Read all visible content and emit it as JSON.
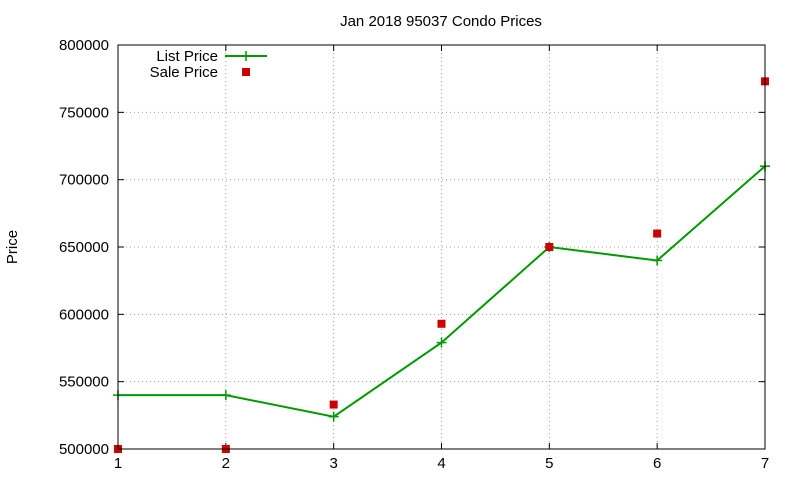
{
  "chart_data": {
    "type": "line",
    "title": "Jan 2018 95037 Condo Prices",
    "xlabel": "",
    "ylabel": "Price",
    "xlim": [
      1,
      7
    ],
    "ylim": [
      500000,
      800000
    ],
    "x_ticks": [
      "1",
      "2",
      "3",
      "4",
      "5",
      "6",
      "7"
    ],
    "y_ticks": [
      "500000",
      "550000",
      "600000",
      "650000",
      "700000",
      "750000",
      "800000"
    ],
    "grid": true,
    "legend_position": "top-left",
    "series": [
      {
        "name": "List Price",
        "style": "lines+points",
        "marker": "plus",
        "color": "#009900",
        "x": [
          1,
          2,
          3,
          4,
          5,
          6,
          7
        ],
        "y": [
          540000,
          540000,
          524000,
          579000,
          650000,
          640000,
          710000
        ]
      },
      {
        "name": "Sale Price",
        "style": "points",
        "marker": "square",
        "color": "#cc0000",
        "x": [
          1,
          2,
          3,
          4,
          5,
          6,
          7
        ],
        "y": [
          500000,
          500000,
          533000,
          593000,
          650000,
          660000,
          773000
        ]
      }
    ]
  }
}
